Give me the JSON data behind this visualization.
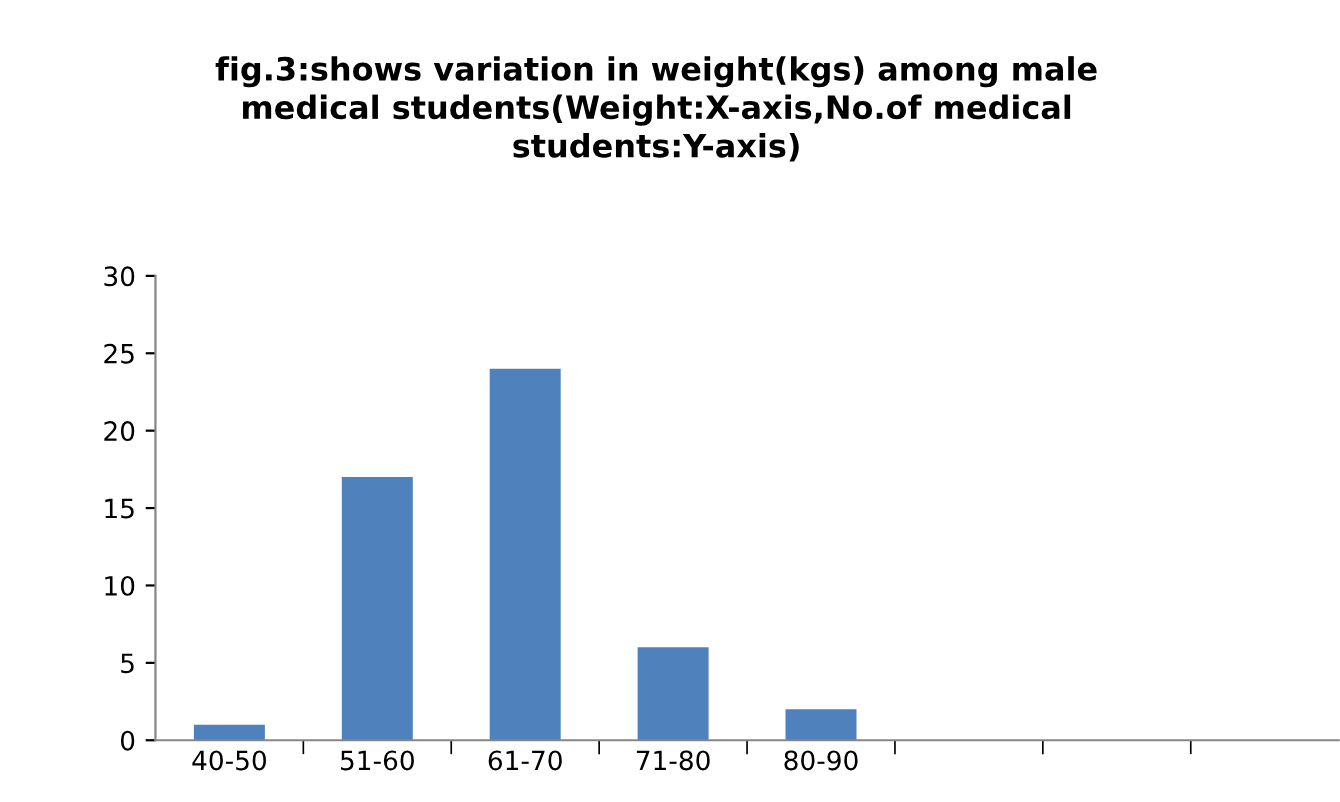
{
  "chart_data": {
    "type": "bar",
    "title": "fig.3:shows variation in weight(kgs) among male\nmedical students(Weight:X-axis,No.of medical\nstudents:Y-axis)",
    "categories": [
      "40-50",
      "51-60",
      "61-70",
      "71-80",
      "80-90",
      null,
      null,
      null
    ],
    "values": [
      1,
      17,
      24,
      6,
      2,
      null,
      null,
      null
    ],
    "color": "#4f81bd",
    "ylim": [
      0,
      30
    ],
    "yticks": [
      0,
      5,
      10,
      15,
      20,
      25,
      30
    ],
    "grid": false,
    "legend": false
  }
}
